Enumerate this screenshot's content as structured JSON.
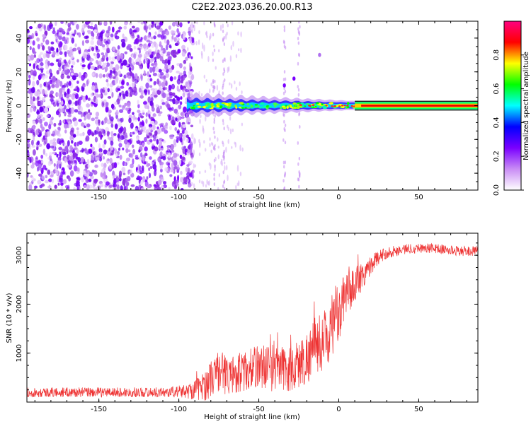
{
  "title": "C2E2.2023.036.20.00.R13",
  "colors": {
    "signal_line": "#ee3333",
    "background_scatter": "#8a2be2",
    "frame": "#000000"
  },
  "chart_data": [
    {
      "type": "heatmap",
      "name": "spectrogram",
      "xlabel": "Height of straight line (km)",
      "ylabel": "Frequency (Hz)",
      "xlim": [
        -195,
        87
      ],
      "ylim": [
        -50,
        50
      ],
      "x_ticks": [
        -150,
        -100,
        -50,
        0,
        50
      ],
      "y_ticks": [
        -40,
        -20,
        0,
        20,
        40
      ],
      "colorbar": {
        "label": "Normalized spectral amplitude",
        "range": [
          0,
          1
        ],
        "ticks": [
          "0.0",
          "0.2",
          "0.4",
          "0.6",
          "0.8"
        ],
        "stops": [
          "#ffffff",
          "#c98cf5",
          "#7a00ff",
          "#0000ff",
          "#00ffff",
          "#00ff00",
          "#ffff00",
          "#ff0000",
          "#ff0080"
        ]
      },
      "features": {
        "noise_region_x": [
          -195,
          -95
        ],
        "signal_onset_x": -95,
        "carrier_frequency_hz": 0,
        "features_at_x": [
          -34,
          -28,
          -12
        ],
        "features_at_y": [
          12,
          16,
          30
        ]
      }
    },
    {
      "type": "line",
      "name": "snr",
      "xlabel": "Height of straight line (km)",
      "ylabel": "SNR (10 * v/v)",
      "xlim": [
        -195,
        87
      ],
      "ylim": [
        0,
        3450
      ],
      "x_ticks": [
        -150,
        -100,
        -50,
        0,
        50
      ],
      "y_ticks": [
        1000,
        2000,
        3000
      ],
      "series": [
        {
          "x": [
            -195,
            -150,
            -110,
            -95,
            -85,
            -75,
            -70,
            -60,
            -50,
            -40,
            -30,
            -20,
            -15,
            -10,
            -5,
            0,
            5,
            10,
            15,
            20,
            25,
            30,
            40,
            50,
            60,
            70,
            80,
            87
          ],
          "values": [
            200,
            200,
            200,
            220,
            300,
            650,
            550,
            600,
            750,
            700,
            650,
            900,
            1150,
            1250,
            1450,
            1750,
            2150,
            2400,
            2600,
            2800,
            2950,
            3050,
            3120,
            3150,
            3140,
            3100,
            3080,
            3090
          ],
          "noise": [
            100,
            100,
            100,
            140,
            300,
            450,
            400,
            400,
            450,
            500,
            500,
            550,
            600,
            600,
            600,
            500,
            450,
            400,
            300,
            200,
            150,
            120,
            110,
            100,
            100,
            100,
            100,
            100
          ]
        }
      ]
    }
  ]
}
